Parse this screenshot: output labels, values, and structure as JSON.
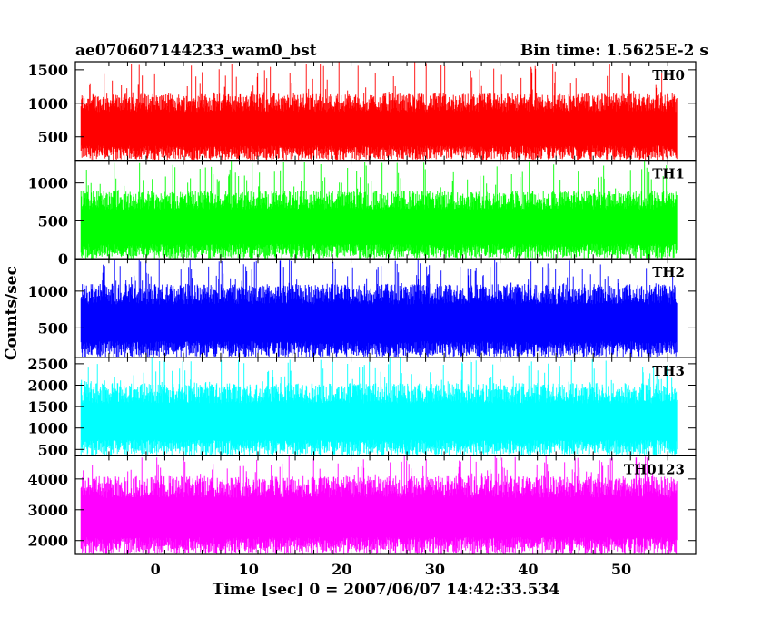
{
  "title_left": "ae070607144233_wam0_bst",
  "title_right": "Bin time: 1.5625E-2 s",
  "ylabel": "Counts/sec",
  "xlabel": "Time [sec] 0 = 2007/06/07 14:42:33.534",
  "chart_data": {
    "type": "line",
    "shared_x": {
      "xlim": [
        -8.6,
        58.0
      ],
      "ticks": [
        0,
        10,
        20,
        30,
        40,
        50
      ],
      "data_range": [
        -8.0,
        56.0
      ],
      "bin_time": 0.015625
    },
    "panels": [
      {
        "name": "TH0",
        "color": "#ff0000",
        "ylim": [
          150,
          1620
        ],
        "ticks": [
          500,
          1000,
          1500
        ],
        "baseline": 150,
        "typical_high": 1150,
        "peak": 1620
      },
      {
        "name": "TH1",
        "color": "#00ff00",
        "ylim": [
          0,
          1300
        ],
        "ticks": [
          0,
          500,
          1000
        ],
        "baseline": 0,
        "typical_high": 900,
        "peak": 1300
      },
      {
        "name": "TH2",
        "color": "#0000ff",
        "ylim": [
          100,
          1440
        ],
        "ticks": [
          500,
          1000
        ],
        "baseline": 100,
        "typical_high": 1100,
        "peak": 1440
      },
      {
        "name": "TH3",
        "color": "#00ffff",
        "ylim": [
          350,
          2650
        ],
        "ticks": [
          500,
          1000,
          1500,
          2000,
          2500
        ],
        "baseline": 350,
        "typical_high": 2050,
        "peak": 2650
      },
      {
        "name": "TH0123",
        "color": "#ff00ff",
        "ylim": [
          1550,
          4750
        ],
        "ticks": [
          2000,
          3000,
          4000
        ],
        "baseline": 1550,
        "typical_high": 4100,
        "peak": 4750
      }
    ]
  }
}
